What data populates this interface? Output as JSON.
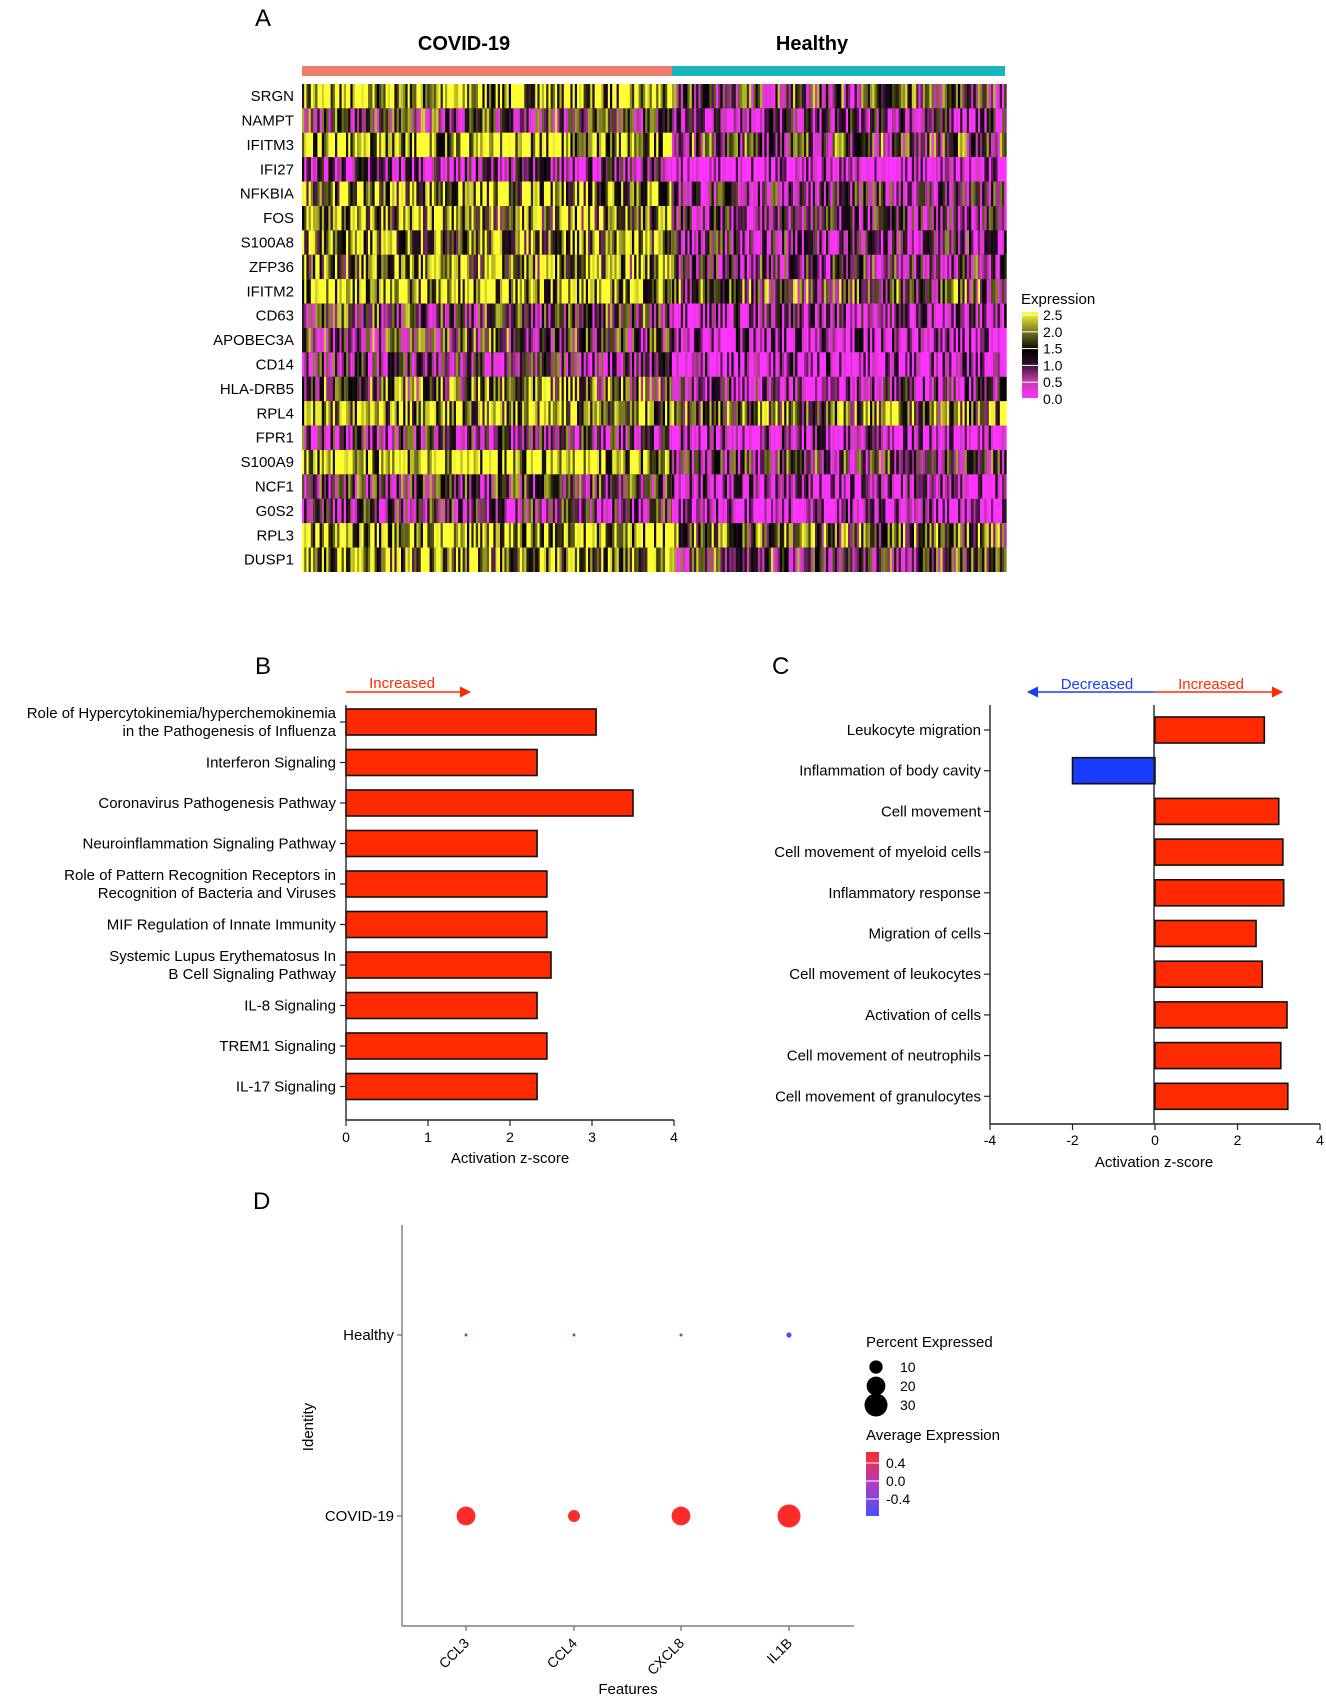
{
  "panels": {
    "a": "A",
    "b": "B",
    "c": "C",
    "d": "D"
  },
  "chart_data": [
    {
      "id": "A",
      "type": "heatmap",
      "title": "",
      "groups": [
        {
          "name": "COVID-19",
          "color": "#f07c6e"
        },
        {
          "name": "Healthy",
          "color": "#1ab5bb"
        }
      ],
      "genes": [
        "SRGN",
        "NAMPT",
        "IFITM3",
        "IFI27",
        "NFKBIA",
        "FOS",
        "S100A8",
        "ZFP36",
        "IFITM2",
        "CD63",
        "APOBEC3A",
        "CD14",
        "HLA-DRB5",
        "RPL4",
        "FPR1",
        "S100A9",
        "NCF1",
        "G0S2",
        "RPL3",
        "DUSP1"
      ],
      "mean_expression": {
        "COVID-19": [
          2.2,
          1.2,
          2.3,
          0.6,
          2.0,
          1.8,
          1.9,
          1.8,
          2.2,
          1.2,
          1.2,
          0.9,
          1.6,
          2.0,
          0.9,
          2.4,
          1.1,
          1.0,
          2.2,
          2.0
        ],
        "Healthy": [
          1.2,
          0.7,
          1.3,
          0.0,
          0.9,
          0.9,
          0.9,
          1.0,
          1.4,
          0.6,
          0.3,
          0.2,
          0.7,
          1.7,
          0.3,
          1.1,
          0.4,
          0.2,
          1.7,
          1.2
        ]
      },
      "legend": {
        "title": "Expression",
        "ticks": [
          "2.5",
          "2.0",
          "1.5",
          "1.0",
          "0.5",
          "0.0"
        ],
        "range": [
          0,
          2.5
        ],
        "colors": [
          "#ff33ff",
          "#c23ba8",
          "#2b0f2b",
          "#000000",
          "#6b6b20",
          "#ffff33"
        ]
      }
    },
    {
      "id": "B",
      "type": "bar",
      "orientation": "horizontal",
      "arrow_label": "Increased",
      "categories": [
        [
          "Role of Hypercytokinemia/hyperchemokinemia",
          "in the Pathogenesis of Influenza"
        ],
        [
          "Interferon Signaling"
        ],
        [
          "Coronavirus Pathogenesis Pathway"
        ],
        [
          "Neuroinflammation Signaling Pathway"
        ],
        [
          "Role of Pattern Recognition Receptors in",
          "Recognition of Bacteria and Viruses"
        ],
        [
          "MIF Regulation of Innate Immunity"
        ],
        [
          "Systemic Lupus Erythematosus In",
          "B Cell Signaling Pathway"
        ],
        [
          "IL-8 Signaling"
        ],
        [
          "TREM1 Signaling"
        ],
        [
          "IL-17 Signaling"
        ]
      ],
      "values": [
        3.05,
        2.33,
        3.5,
        2.33,
        2.45,
        2.45,
        2.5,
        2.33,
        2.45,
        2.33
      ],
      "xlim": [
        0,
        4
      ],
      "xticks": [
        "0",
        "1",
        "2",
        "3",
        "4"
      ],
      "xlabel": "Activation z-score",
      "bar_color": "#ff2a00"
    },
    {
      "id": "C",
      "type": "bar",
      "orientation": "horizontal",
      "arrow_labels": {
        "decreased": "Decreased",
        "increased": "Increased"
      },
      "categories": [
        "Leukocyte migration",
        "Inflammation of body cavity",
        "Cell movement",
        "Cell movement of myeloid cells",
        "Inflammatory response",
        "Migration of cells",
        "Cell movement of leukocytes",
        "Activation of cells",
        "Cell movement of neutrophils",
        "Cell movement of granulocytes"
      ],
      "values": [
        2.65,
        -2.0,
        3.0,
        3.1,
        3.12,
        2.45,
        2.6,
        3.2,
        3.05,
        3.22
      ],
      "xlim": [
        -4,
        4
      ],
      "xticks": [
        "-4",
        "-2",
        "0",
        "2",
        "4"
      ],
      "xlabel": "Activation z-score",
      "pos_color": "#ff2a00",
      "neg_color": "#1a3cff"
    },
    {
      "id": "D",
      "type": "scatter",
      "subtype": "dotplot",
      "features": [
        "CCL3",
        "CCL4",
        "CXCL8",
        "IL1B"
      ],
      "identities": [
        "Healthy",
        "COVID-19"
      ],
      "xlabel": "Features",
      "ylabel": "Identity",
      "points": [
        {
          "feature": "CCL3",
          "identity": "Healthy",
          "pct": 0.5,
          "avg": -0.1
        },
        {
          "feature": "CCL4",
          "identity": "Healthy",
          "pct": 0.5,
          "avg": -0.1
        },
        {
          "feature": "CXCL8",
          "identity": "Healthy",
          "pct": 0.5,
          "avg": -0.1
        },
        {
          "feature": "IL1B",
          "identity": "Healthy",
          "pct": 1.5,
          "avg": -0.5
        },
        {
          "feature": "CCL3",
          "identity": "COVID-19",
          "pct": 20,
          "avg": 0.5
        },
        {
          "feature": "CCL4",
          "identity": "COVID-19",
          "pct": 8,
          "avg": 0.5
        },
        {
          "feature": "CXCL8",
          "identity": "COVID-19",
          "pct": 20,
          "avg": 0.5
        },
        {
          "feature": "IL1B",
          "identity": "COVID-19",
          "pct": 30,
          "avg": 0.5
        }
      ],
      "size_legend": {
        "title": "Percent Expressed",
        "values": [
          10,
          20,
          30
        ],
        "labels": [
          "10",
          "20",
          "30"
        ]
      },
      "color_legend": {
        "title": "Average Expression",
        "labels": [
          "0.4",
          "0.0",
          "-0.4"
        ],
        "range": [
          -0.5,
          0.5
        ],
        "low_color": "#4a50ff",
        "high_color": "#ff2a2a"
      }
    }
  ]
}
